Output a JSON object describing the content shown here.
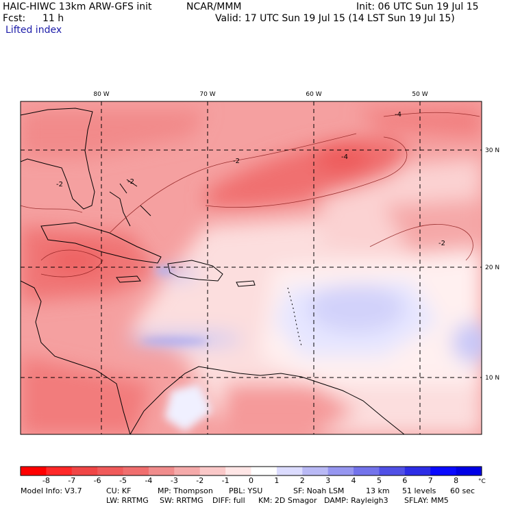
{
  "header": {
    "title": "HAIC-HIWC 13km ARW-GFS init",
    "org": "NCAR/MMM",
    "init": "Init: 06 UTC Sun 19 Jul 15",
    "fcst_label": "Fcst:",
    "fcst_value": "11 h",
    "valid": "Valid: 17 UTC Sun 19 Jul 15 (14 LST Sun 19 Jul 15)",
    "field": "Lifted index"
  },
  "map": {
    "lon_labels": [
      "80 W",
      "70 W",
      "60 W",
      "50 W"
    ],
    "lat_labels": [
      "30 N",
      "20 N",
      "10 N"
    ],
    "contour_labels": [
      "-2",
      "-2",
      "-2",
      "-4",
      "-4",
      "-2"
    ]
  },
  "colorbar": {
    "unit": "°C",
    "ticks": [
      "-8",
      "-7",
      "-6",
      "-5",
      "-4",
      "-3",
      "-2",
      "-1",
      "0",
      "1",
      "2",
      "3",
      "4",
      "5",
      "6",
      "7",
      "8"
    ],
    "colors": [
      "#ff0000",
      "#ff2828",
      "#f04646",
      "#f05a5a",
      "#f06e6e",
      "#f08c8c",
      "#f5aaaa",
      "#fac8c8",
      "#ffe6e6",
      "#ffffff",
      "#dcdcff",
      "#b9b9f5",
      "#9696f0",
      "#7373eb",
      "#5050e6",
      "#2d2de6",
      "#0a0aff",
      "#0000e6"
    ]
  },
  "info": {
    "line1": [
      "Model Info: V3.7",
      "CU: KF",
      "MP: Thompson",
      "PBL: YSU",
      "SF: Noah LSM",
      "13 km",
      "51 levels",
      "60 sec"
    ],
    "line2": [
      "LW: RRTMG",
      "SW: RRTMG",
      "DIFF: full",
      "KM: 2D Smagor",
      "DAMP: Rayleigh3",
      "SFLAY: MM5"
    ]
  }
}
